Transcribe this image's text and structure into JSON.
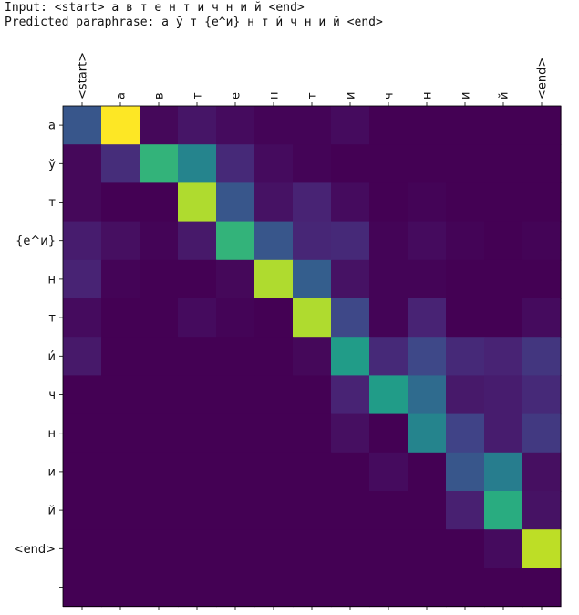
{
  "header": {
    "input_line": "Input: <start> а в т е н т и ч н и й <end>",
    "prediction_line": "Predicted paraphrase: а ў т {e^и} н т и́ ч н и й <end>"
  },
  "chart_data": {
    "type": "heatmap",
    "title": "",
    "xlabel": "",
    "ylabel": "",
    "x_labels": [
      "<start>",
      "а",
      "в",
      "т",
      "е",
      "н",
      "т",
      "и",
      "ч",
      "н",
      "и",
      "й",
      "<end>"
    ],
    "y_labels": [
      "а",
      "ў",
      "т",
      "{e^и}",
      "н",
      "т",
      "и́",
      "ч",
      "н",
      "и",
      "й",
      "<end>",
      ""
    ],
    "colormap": "viridis",
    "value_range": [
      0,
      1
    ],
    "values": [
      [
        0.27,
        1.0,
        0.02,
        0.06,
        0.03,
        0.01,
        0.01,
        0.03,
        0.0,
        0.0,
        0.0,
        0.0,
        0.0
      ],
      [
        0.02,
        0.13,
        0.65,
        0.45,
        0.12,
        0.03,
        0.01,
        0.0,
        0.0,
        0.0,
        0.0,
        0.0,
        0.0
      ],
      [
        0.02,
        0.0,
        0.0,
        0.88,
        0.27,
        0.05,
        0.1,
        0.03,
        0.0,
        0.01,
        0.0,
        0.0,
        0.0
      ],
      [
        0.08,
        0.04,
        0.01,
        0.07,
        0.65,
        0.27,
        0.11,
        0.12,
        0.01,
        0.03,
        0.01,
        0.0,
        0.01
      ],
      [
        0.1,
        0.01,
        0.0,
        0.0,
        0.02,
        0.88,
        0.3,
        0.05,
        0.01,
        0.01,
        0.0,
        0.0,
        0.0
      ],
      [
        0.03,
        0.0,
        0.0,
        0.03,
        0.01,
        0.0,
        0.88,
        0.22,
        0.01,
        0.1,
        0.0,
        0.0,
        0.03
      ],
      [
        0.07,
        0.0,
        0.0,
        0.0,
        0.0,
        0.0,
        0.02,
        0.55,
        0.12,
        0.22,
        0.12,
        0.1,
        0.16
      ],
      [
        0.0,
        0.0,
        0.0,
        0.0,
        0.0,
        0.0,
        0.0,
        0.1,
        0.55,
        0.35,
        0.07,
        0.08,
        0.12
      ],
      [
        0.0,
        0.0,
        0.0,
        0.0,
        0.0,
        0.0,
        0.0,
        0.04,
        0.0,
        0.45,
        0.2,
        0.08,
        0.17
      ],
      [
        0.0,
        0.0,
        0.0,
        0.0,
        0.0,
        0.0,
        0.0,
        0.0,
        0.03,
        0.0,
        0.27,
        0.42,
        0.04
      ],
      [
        0.0,
        0.0,
        0.0,
        0.0,
        0.0,
        0.0,
        0.0,
        0.0,
        0.0,
        0.0,
        0.09,
        0.62,
        0.05
      ],
      [
        0.0,
        0.0,
        0.0,
        0.0,
        0.0,
        0.0,
        0.0,
        0.0,
        0.0,
        0.0,
        0.0,
        0.03,
        0.9
      ],
      [
        0.0,
        0.0,
        0.0,
        0.0,
        0.0,
        0.0,
        0.0,
        0.0,
        0.0,
        0.0,
        0.0,
        0.0,
        0.0
      ]
    ]
  }
}
